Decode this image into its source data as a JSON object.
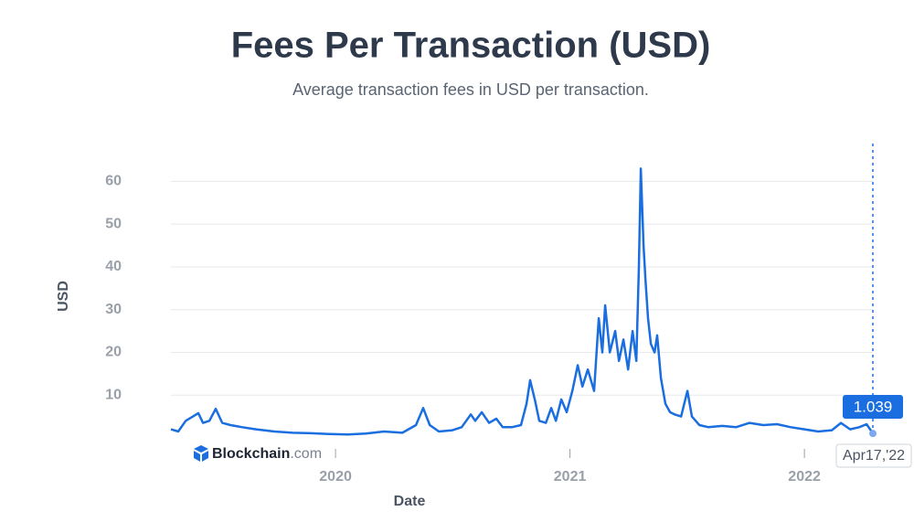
{
  "chart_data": {
    "type": "line",
    "title": "Fees Per Transaction (USD)",
    "subtitle": "Average transaction fees in USD per transaction.",
    "y_label": "USD",
    "x_label": "Date",
    "watermark_brand": "Blockchain",
    "watermark_suffix": ".com",
    "hover_date_label": "Apr17,'22",
    "color": "#1a6ee0",
    "grid": true,
    "xlim": [
      2019.298,
      2022.292
    ],
    "xticks": [
      2020,
      2021,
      2022
    ],
    "ylim": [
      0,
      68
    ],
    "yticks": [
      10,
      20,
      30,
      40,
      50,
      60
    ],
    "x": [
      2019.298,
      2019.329,
      2019.361,
      2019.392,
      2019.415,
      2019.435,
      2019.462,
      2019.489,
      2019.517,
      2019.552,
      2019.602,
      2019.661,
      2019.739,
      2019.817,
      2019.895,
      2019.973,
      2020.051,
      2020.129,
      2020.207,
      2020.285,
      2020.343,
      2020.374,
      2020.402,
      2020.441,
      2020.499,
      2020.538,
      2020.577,
      2020.596,
      2020.624,
      2020.655,
      2020.686,
      2020.713,
      2020.752,
      2020.791,
      2020.815,
      2020.83,
      2020.85,
      2020.869,
      2020.897,
      2020.92,
      2020.94,
      2020.963,
      2020.986,
      2021.01,
      2021.033,
      2021.053,
      2021.076,
      2021.103,
      2021.123,
      2021.138,
      2021.15,
      2021.17,
      2021.193,
      2021.209,
      2021.228,
      2021.248,
      2021.267,
      2021.283,
      2021.294,
      2021.302,
      2021.314,
      2021.322,
      2021.333,
      2021.345,
      2021.361,
      2021.372,
      2021.388,
      2021.407,
      2021.427,
      2021.446,
      2021.474,
      2021.501,
      2021.52,
      2021.552,
      2021.591,
      2021.649,
      2021.708,
      2021.766,
      2021.825,
      2021.883,
      2021.942,
      2022.0,
      2022.058,
      2022.117,
      2022.156,
      2022.195,
      2022.234,
      2022.265,
      2022.292
    ],
    "values": [
      2,
      1.5,
      4,
      5,
      5.8,
      3.5,
      4,
      6.8,
      3.5,
      3,
      2.5,
      2,
      1.5,
      1.2,
      1.1,
      0.9,
      0.8,
      1,
      1.5,
      1.2,
      3,
      7,
      3,
      1.5,
      1.8,
      2.5,
      5.5,
      4,
      6,
      3.5,
      4.5,
      2.5,
      2.5,
      3,
      8,
      13.5,
      9,
      4,
      3.5,
      7,
      4,
      9,
      6,
      11,
      17,
      12,
      16,
      11,
      28,
      20,
      31,
      20,
      25,
      18,
      23,
      16,
      25,
      18,
      40,
      63,
      45,
      37,
      28,
      22,
      20,
      24,
      14,
      8,
      6,
      5.5,
      5,
      11,
      5,
      3,
      2.5,
      2.8,
      2.5,
      3.5,
      3,
      3.2,
      2.5,
      2,
      1.5,
      1.8,
      3.5,
      2,
      2.5,
      3.2,
      1.039
    ]
  }
}
